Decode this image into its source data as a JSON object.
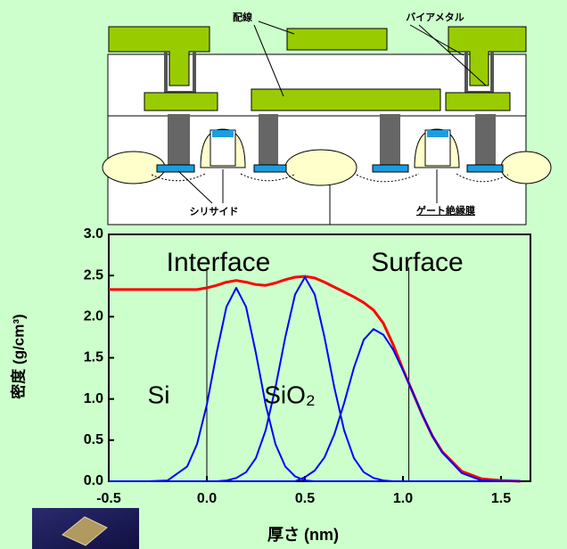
{
  "diagram": {
    "labels": [
      "配線",
      "バイアメタル",
      "シリサイド",
      "ゲート絶縁膜"
    ]
  },
  "chart_data": {
    "type": "line",
    "x_label": "厚さ (nm)",
    "y_label": "密度 (g/cm³)",
    "annotations": [
      "Interface",
      "Surface",
      "Si",
      "SiO₂"
    ],
    "reference_lines": [
      0,
      1.03
    ],
    "x": [
      -0.5,
      -0.4,
      -0.3,
      -0.2,
      -0.1,
      -0.05,
      0,
      0.05,
      0.1,
      0.15,
      0.2,
      0.25,
      0.3,
      0.35,
      0.4,
      0.45,
      0.5,
      0.55,
      0.6,
      0.65,
      0.7,
      0.75,
      0.8,
      0.85,
      0.9,
      0.95,
      1.0,
      1.05,
      1.1,
      1.15,
      1.2,
      1.3,
      1.4,
      1.5,
      1.6
    ],
    "series": [
      {
        "color": "#ff0000",
        "values": [
          2.33,
          2.33,
          2.33,
          2.33,
          2.33,
          2.33,
          2.35,
          2.38,
          2.42,
          2.44,
          2.42,
          2.39,
          2.38,
          2.41,
          2.45,
          2.48,
          2.49,
          2.47,
          2.42,
          2.36,
          2.3,
          2.24,
          2.17,
          2.08,
          1.92,
          1.66,
          1.36,
          1.08,
          0.8,
          0.55,
          0.36,
          0.12,
          0.03,
          0.01,
          0
        ]
      },
      {
        "color": "#0000ff",
        "values": [
          0,
          0,
          0,
          0.01,
          0.18,
          0.45,
          0.93,
          1.56,
          2.12,
          2.35,
          2.12,
          1.56,
          0.93,
          0.45,
          0.18,
          0.06,
          0.01,
          0,
          0,
          0,
          0,
          0,
          0,
          0,
          0,
          0,
          0,
          0,
          0,
          0,
          0,
          0,
          0,
          0,
          0
        ]
      },
      {
        "color": "#0000ff",
        "values": [
          0,
          0,
          0,
          0,
          0,
          0,
          0,
          0,
          0.01,
          0.04,
          0.11,
          0.28,
          0.62,
          1.14,
          1.75,
          2.27,
          2.48,
          2.27,
          1.75,
          1.14,
          0.62,
          0.28,
          0.11,
          0.04,
          0.01,
          0,
          0,
          0,
          0,
          0,
          0,
          0,
          0,
          0,
          0
        ]
      },
      {
        "color": "#0000ff",
        "values": [
          0,
          0,
          0,
          0,
          0,
          0,
          0,
          0,
          0,
          0,
          0,
          0,
          0,
          0,
          0,
          0,
          0.05,
          0.13,
          0.29,
          0.57,
          0.95,
          1.38,
          1.72,
          1.85,
          1.78,
          1.6,
          1.35,
          1.08,
          0.8,
          0.55,
          0.35,
          0.1,
          0.01,
          0,
          0
        ]
      }
    ],
    "xlim": [
      -0.5,
      1.65
    ],
    "ylim": [
      0,
      3
    ],
    "xticks": [
      {
        "value": -0.5,
        "label": "-0.5"
      },
      {
        "value": 0,
        "label": "0.0"
      },
      0.5,
      {
        "value": 1,
        "label": "1.0"
      },
      1.5
    ],
    "yticks": [
      {
        "value": 0,
        "label": "0.0"
      },
      0.5,
      {
        "value": 1,
        "label": "1.0"
      },
      1.5,
      {
        "value": 2,
        "label": "2.0"
      },
      2.5,
      {
        "value": 3,
        "label": "3.0"
      }
    ]
  }
}
